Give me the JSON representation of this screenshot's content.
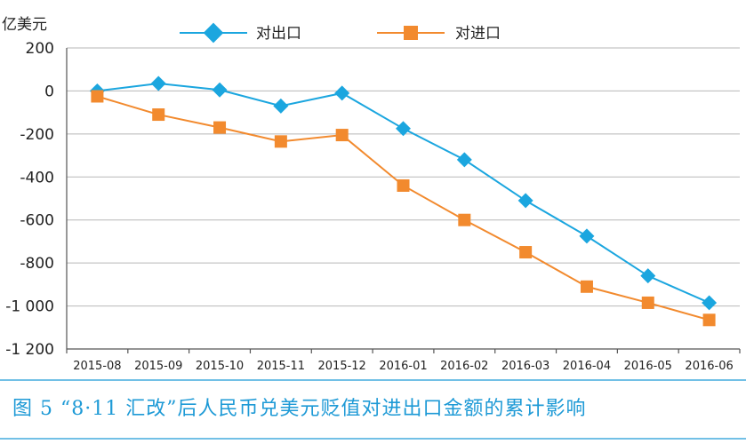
{
  "caption": {
    "text": "图 5  “8·11 汇改”后人民币兑美元贬值对进出口金额的累计影响"
  },
  "colors": {
    "export": "#1ba6df",
    "import": "#f28a2e",
    "caption": "#1e9ad6"
  },
  "chart_data": {
    "type": "line",
    "title": "",
    "ylabel": "亿美元",
    "xlabel": "",
    "ylim": [
      -1200,
      200
    ],
    "yticks": [
      200,
      0,
      -200,
      -400,
      -600,
      -800,
      -1000,
      -1200
    ],
    "ytick_labels": [
      "200",
      "0",
      "-200",
      "-400",
      "-600",
      "-800",
      "-1 000",
      "-1 200"
    ],
    "grid": true,
    "legend_position": "top-center",
    "categories": [
      "2015-08",
      "2015-09",
      "2015-10",
      "2015-11",
      "2015-12",
      "2016-01",
      "2016-02",
      "2016-03",
      "2016-04",
      "2016-05",
      "2016-06"
    ],
    "series": [
      {
        "name": "对出口",
        "marker": "diamond",
        "color": "#1ba6df",
        "values": [
          0,
          35,
          5,
          -70,
          -10,
          -175,
          -320,
          -510,
          -675,
          -860,
          -985
        ]
      },
      {
        "name": "对进口",
        "marker": "square",
        "color": "#f28a2e",
        "values": [
          -25,
          -110,
          -170,
          -235,
          -205,
          -440,
          -600,
          -750,
          -910,
          -985,
          -1065
        ]
      }
    ]
  }
}
